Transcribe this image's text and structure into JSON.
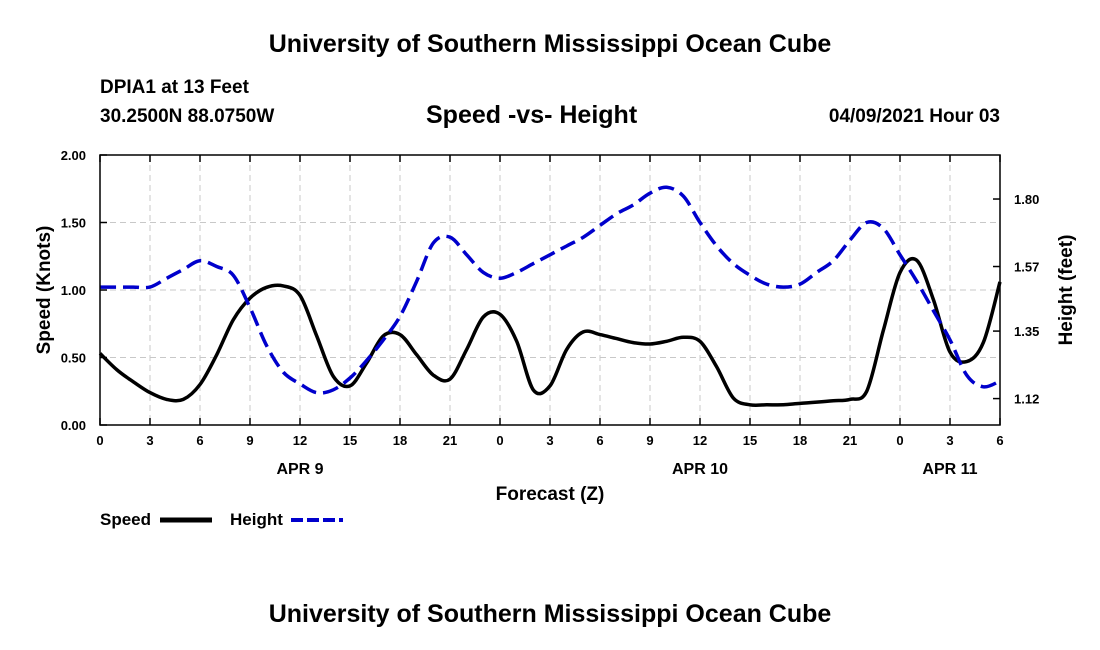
{
  "header": {
    "title": "University of Southern Mississippi Ocean Cube",
    "station": "DPIA1 at 13 Feet",
    "coords": "30.2500N  88.0750W",
    "subtitle": "Speed -vs- Height",
    "datetime": "04/09/2021 Hour 03"
  },
  "footer": {
    "title": "University of Southern Mississippi Ocean Cube"
  },
  "chart_data": {
    "type": "line",
    "title": "Speed -vs- Height",
    "xlabel": "Forecast (Z)",
    "ylabel": "Speed (Knots)",
    "y2label": "Height (feet)",
    "xlim": [
      0,
      54
    ],
    "ylim": [
      0,
      2
    ],
    "y2lim": [
      1.03,
      1.95
    ],
    "grid": true,
    "x_ticks": [
      0,
      3,
      6,
      9,
      12,
      15,
      18,
      21,
      24,
      27,
      30,
      33,
      36,
      39,
      42,
      45,
      48,
      51,
      54
    ],
    "x_tick_labels": [
      "0",
      "3",
      "6",
      "9",
      "12",
      "15",
      "18",
      "21",
      "0",
      "3",
      "6",
      "9",
      "12",
      "15",
      "18",
      "21",
      "0",
      "3",
      "6"
    ],
    "y_ticks": [
      0,
      0.5,
      1,
      1.5,
      2
    ],
    "y_tick_labels": [
      "0.00",
      "0.50",
      "1.00",
      "1.50",
      "2.00"
    ],
    "y2_ticks": [
      1.12,
      1.35,
      1.57,
      1.8
    ],
    "y2_tick_labels": [
      "1.12",
      "1.35",
      "1.57",
      "1.80"
    ],
    "date_labels": [
      {
        "label": "APR 9",
        "x": 12
      },
      {
        "label": "APR 10",
        "x": 36
      },
      {
        "label": "APR 11",
        "x": 51
      }
    ],
    "legend_position": "bottom-left",
    "series": [
      {
        "name": "Speed",
        "color": "#000000",
        "axis": "left",
        "style": "solid",
        "x": [
          0,
          1,
          2,
          3,
          4,
          5,
          6,
          7,
          8,
          9,
          10,
          11,
          12,
          13,
          14,
          15,
          16,
          17,
          18,
          19,
          20,
          21,
          22,
          23,
          24,
          25,
          26,
          27,
          28,
          29,
          30,
          31,
          32,
          33,
          34,
          35,
          36,
          37,
          38,
          39,
          40,
          41,
          42,
          43,
          44,
          45,
          46,
          47,
          48,
          49,
          50,
          51,
          52,
          53,
          54
        ],
        "values": [
          0.53,
          0.41,
          0.32,
          0.24,
          0.19,
          0.19,
          0.3,
          0.52,
          0.78,
          0.94,
          1.02,
          1.03,
          0.96,
          0.66,
          0.36,
          0.29,
          0.46,
          0.66,
          0.67,
          0.52,
          0.37,
          0.34,
          0.56,
          0.8,
          0.82,
          0.62,
          0.26,
          0.29,
          0.56,
          0.69,
          0.67,
          0.64,
          0.61,
          0.6,
          0.62,
          0.65,
          0.62,
          0.43,
          0.2,
          0.15,
          0.15,
          0.15,
          0.16,
          0.17,
          0.18,
          0.19,
          0.25,
          0.7,
          1.13,
          1.22,
          0.93,
          0.54,
          0.47,
          0.61,
          1.06
        ]
      },
      {
        "name": "Height",
        "color": "#0000cc",
        "axis": "right",
        "style": "dashed",
        "x": [
          0,
          1,
          2,
          3,
          4,
          5,
          6,
          7,
          8,
          9,
          10,
          11,
          12,
          13,
          14,
          15,
          16,
          17,
          18,
          19,
          20,
          21,
          22,
          23,
          24,
          25,
          26,
          27,
          28,
          29,
          30,
          31,
          32,
          33,
          34,
          35,
          36,
          37,
          38,
          39,
          40,
          41,
          42,
          43,
          44,
          45,
          46,
          47,
          48,
          49,
          50,
          51,
          52,
          53,
          54
        ],
        "values": [
          1.5,
          1.5,
          1.5,
          1.5,
          1.53,
          1.56,
          1.59,
          1.57,
          1.54,
          1.43,
          1.3,
          1.21,
          1.17,
          1.14,
          1.15,
          1.19,
          1.25,
          1.32,
          1.4,
          1.52,
          1.65,
          1.67,
          1.61,
          1.55,
          1.53,
          1.55,
          1.58,
          1.61,
          1.64,
          1.67,
          1.71,
          1.75,
          1.78,
          1.82,
          1.84,
          1.81,
          1.72,
          1.64,
          1.58,
          1.54,
          1.51,
          1.5,
          1.51,
          1.55,
          1.59,
          1.66,
          1.72,
          1.7,
          1.61,
          1.52,
          1.42,
          1.32,
          1.2,
          1.16,
          1.18
        ]
      }
    ]
  }
}
